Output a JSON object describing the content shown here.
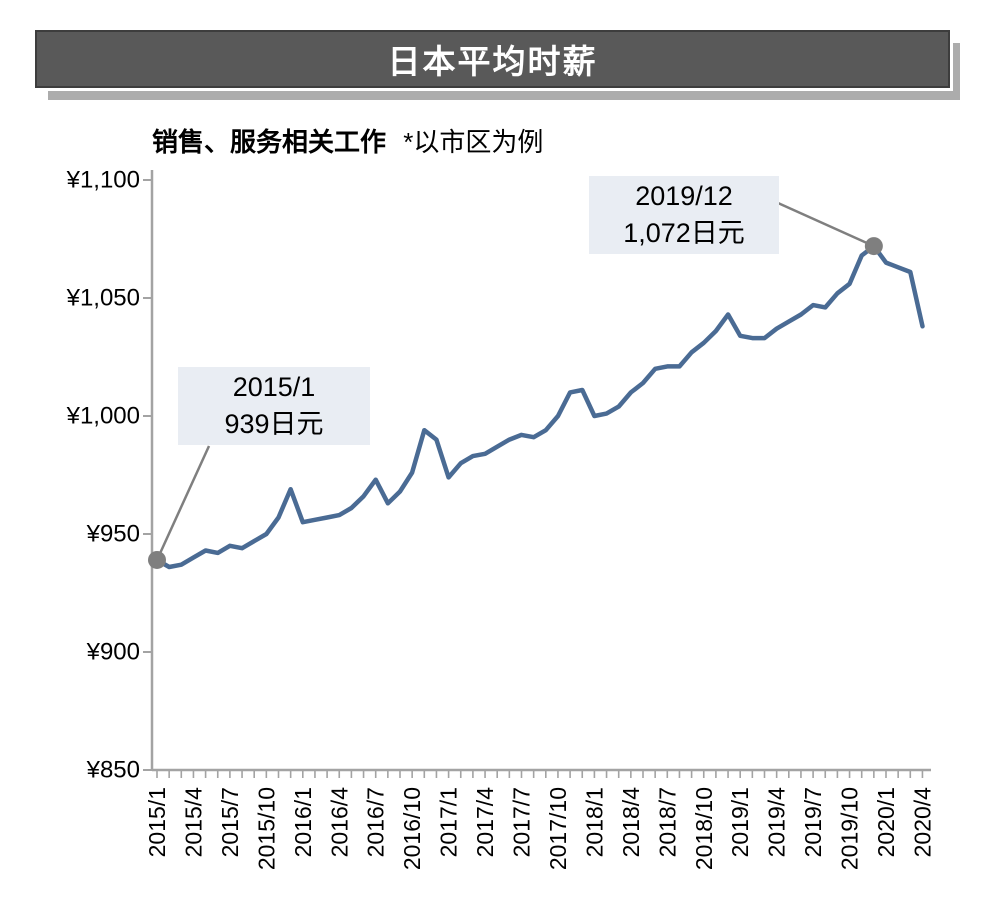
{
  "header": {
    "title": "日本平均时薪"
  },
  "subtitle": {
    "label": "销售、服务相关工作",
    "note": "*以市区为例"
  },
  "chart_data": {
    "type": "line",
    "title": "日本平均时薪",
    "subtitle": "销售、服务相关工作 *以市区为例",
    "x": [
      "2015/1",
      "2015/2",
      "2015/3",
      "2015/4",
      "2015/5",
      "2015/6",
      "2015/7",
      "2015/8",
      "2015/9",
      "2015/10",
      "2015/11",
      "2015/12",
      "2016/1",
      "2016/2",
      "2016/3",
      "2016/4",
      "2016/5",
      "2016/6",
      "2016/7",
      "2016/8",
      "2016/9",
      "2016/10",
      "2016/11",
      "2016/12",
      "2017/1",
      "2017/2",
      "2017/3",
      "2017/4",
      "2017/5",
      "2017/6",
      "2017/7",
      "2017/8",
      "2017/9",
      "2017/10",
      "2017/11",
      "2017/12",
      "2018/1",
      "2018/2",
      "2018/3",
      "2018/4",
      "2018/5",
      "2018/6",
      "2018/7",
      "2018/8",
      "2018/9",
      "2018/10",
      "2018/11",
      "2018/12",
      "2019/1",
      "2019/2",
      "2019/3",
      "2019/4",
      "2019/5",
      "2019/6",
      "2019/7",
      "2019/8",
      "2019/9",
      "2019/10",
      "2019/11",
      "2019/12",
      "2020/1",
      "2020/2",
      "2020/3",
      "2020/4"
    ],
    "values": [
      939,
      936,
      937,
      940,
      943,
      942,
      945,
      944,
      947,
      950,
      957,
      969,
      955,
      956,
      957,
      958,
      961,
      966,
      973,
      963,
      968,
      976,
      994,
      990,
      974,
      980,
      983,
      984,
      987,
      990,
      992,
      991,
      994,
      1000,
      1010,
      1011,
      1000,
      1001,
      1004,
      1010,
      1014,
      1020,
      1021,
      1021,
      1027,
      1031,
      1036,
      1043,
      1034,
      1033,
      1033,
      1037,
      1040,
      1043,
      1047,
      1046,
      1052,
      1056,
      1068,
      1072,
      1065,
      1063,
      1061,
      1038
    ],
    "x_tick_labels": [
      "2015/1",
      "2015/4",
      "2015/7",
      "2015/10",
      "2016/1",
      "2016/4",
      "2016/7",
      "2016/10",
      "2017/1",
      "2017/4",
      "2017/7",
      "2017/10",
      "2018/1",
      "2018/4",
      "2018/7",
      "2018/10",
      "2019/1",
      "2019/4",
      "2019/7",
      "2019/10",
      "2020/1",
      "2020/4"
    ],
    "x_label_every_n_months": 3,
    "y_ticks": [
      850,
      900,
      950,
      1000,
      1050,
      1100
    ],
    "y_tick_labels": [
      "¥850",
      "¥900",
      "¥950",
      "¥1,000",
      "¥1,050",
      "¥1,100"
    ],
    "ylim": [
      850,
      1100
    ],
    "grid": false,
    "legend": false,
    "line_color": "#4a6b94",
    "marker_color": "#7f7f7f",
    "axis_color": "#a3a3a3",
    "annotation_bg": "#e9edf3",
    "annotations": [
      {
        "x": "2015/1",
        "value": 939,
        "line1": "2015/1",
        "line2": "939日元"
      },
      {
        "x": "2019/12",
        "value": 1072,
        "line1": "2019/12",
        "line2": "1,072日元"
      }
    ]
  }
}
